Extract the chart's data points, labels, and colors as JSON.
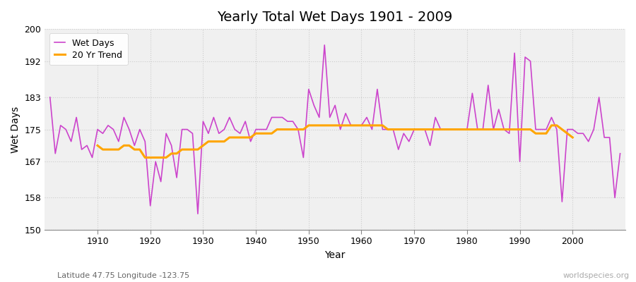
{
  "title": "Yearly Total Wet Days 1901 - 2009",
  "xlabel": "Year",
  "ylabel": "Wet Days",
  "subtitle": "Latitude 47.75 Longitude -123.75",
  "watermark": "worldspecies.org",
  "years": [
    1901,
    1902,
    1903,
    1904,
    1905,
    1906,
    1907,
    1908,
    1909,
    1910,
    1911,
    1912,
    1913,
    1914,
    1915,
    1916,
    1917,
    1918,
    1919,
    1920,
    1921,
    1922,
    1923,
    1924,
    1925,
    1926,
    1927,
    1928,
    1929,
    1930,
    1931,
    1932,
    1933,
    1934,
    1935,
    1936,
    1937,
    1938,
    1939,
    1940,
    1941,
    1942,
    1943,
    1944,
    1945,
    1946,
    1947,
    1948,
    1949,
    1950,
    1951,
    1952,
    1953,
    1954,
    1955,
    1956,
    1957,
    1958,
    1959,
    1960,
    1961,
    1962,
    1963,
    1964,
    1965,
    1966,
    1967,
    1968,
    1969,
    1970,
    1971,
    1972,
    1973,
    1974,
    1975,
    1976,
    1977,
    1978,
    1979,
    1980,
    1981,
    1982,
    1983,
    1984,
    1985,
    1986,
    1987,
    1988,
    1989,
    1990,
    1991,
    1992,
    1993,
    1994,
    1995,
    1996,
    1997,
    1998,
    1999,
    2000,
    2001,
    2002,
    2003,
    2004,
    2005,
    2006,
    2007,
    2008,
    2009
  ],
  "wet_days": [
    183,
    169,
    176,
    175,
    172,
    178,
    170,
    171,
    168,
    175,
    174,
    176,
    175,
    172,
    178,
    175,
    171,
    175,
    172,
    156,
    167,
    162,
    174,
    171,
    163,
    175,
    175,
    174,
    154,
    177,
    174,
    178,
    174,
    175,
    178,
    175,
    174,
    177,
    172,
    175,
    175,
    175,
    178,
    178,
    178,
    177,
    177,
    175,
    168,
    185,
    181,
    178,
    196,
    178,
    181,
    175,
    179,
    176,
    176,
    176,
    178,
    175,
    185,
    175,
    175,
    175,
    170,
    174,
    172,
    175,
    175,
    175,
    171,
    178,
    175,
    175,
    175,
    175,
    175,
    175,
    184,
    175,
    175,
    186,
    175,
    180,
    175,
    174,
    194,
    167,
    193,
    192,
    175,
    175,
    175,
    178,
    175,
    157,
    175,
    175,
    174,
    174,
    172,
    175,
    183,
    173,
    173,
    158,
    169
  ],
  "trend_years": [
    1910,
    1911,
    1912,
    1913,
    1914,
    1915,
    1916,
    1917,
    1918,
    1919,
    1920,
    1921,
    1922,
    1923,
    1924,
    1925,
    1926,
    1927,
    1928,
    1929,
    1930,
    1931,
    1932,
    1933,
    1934,
    1935,
    1936,
    1937,
    1938,
    1939,
    1940,
    1941,
    1942,
    1943,
    1944,
    1945,
    1946,
    1947,
    1948,
    1949,
    1950,
    1951,
    1952,
    1953,
    1954,
    1955,
    1956,
    1957,
    1958,
    1959,
    1960,
    1961,
    1962,
    1963,
    1964,
    1965,
    1966,
    1967,
    1968,
    1969,
    1970,
    1971,
    1972,
    1973,
    1974,
    1975,
    1976,
    1977,
    1978,
    1979,
    1980,
    1981,
    1982,
    1983,
    1984,
    1985,
    1986,
    1987,
    1988,
    1989,
    1990,
    1991,
    1992,
    1993,
    1994,
    1995,
    1996,
    1997,
    1998,
    1999,
    2000
  ],
  "trend_values": [
    171,
    170,
    170,
    170,
    170,
    171,
    171,
    170,
    170,
    168,
    168,
    168,
    168,
    168,
    169,
    169,
    170,
    170,
    170,
    170,
    171,
    172,
    172,
    172,
    172,
    173,
    173,
    173,
    173,
    173,
    174,
    174,
    174,
    174,
    175,
    175,
    175,
    175,
    175,
    175,
    176,
    176,
    176,
    176,
    176,
    176,
    176,
    176,
    176,
    176,
    176,
    176,
    176,
    176,
    176,
    175,
    175,
    175,
    175,
    175,
    175,
    175,
    175,
    175,
    175,
    175,
    175,
    175,
    175,
    175,
    175,
    175,
    175,
    175,
    175,
    175,
    175,
    175,
    175,
    175,
    175,
    175,
    175,
    174,
    174,
    174,
    176,
    176,
    175,
    174,
    173
  ],
  "wet_days_color": "#CC44CC",
  "trend_color": "#FFA500",
  "bg_color": "#F0F0F0",
  "grid_color": "#CCCCCC",
  "ylim": [
    150,
    200
  ],
  "yticks": [
    150,
    158,
    167,
    175,
    183,
    192,
    200
  ],
  "xlim": [
    1900,
    2010
  ],
  "xticks": [
    1910,
    1920,
    1930,
    1940,
    1950,
    1960,
    1970,
    1980,
    1990,
    2000
  ],
  "title_fontsize": 14,
  "axis_fontsize": 10,
  "tick_fontsize": 9
}
